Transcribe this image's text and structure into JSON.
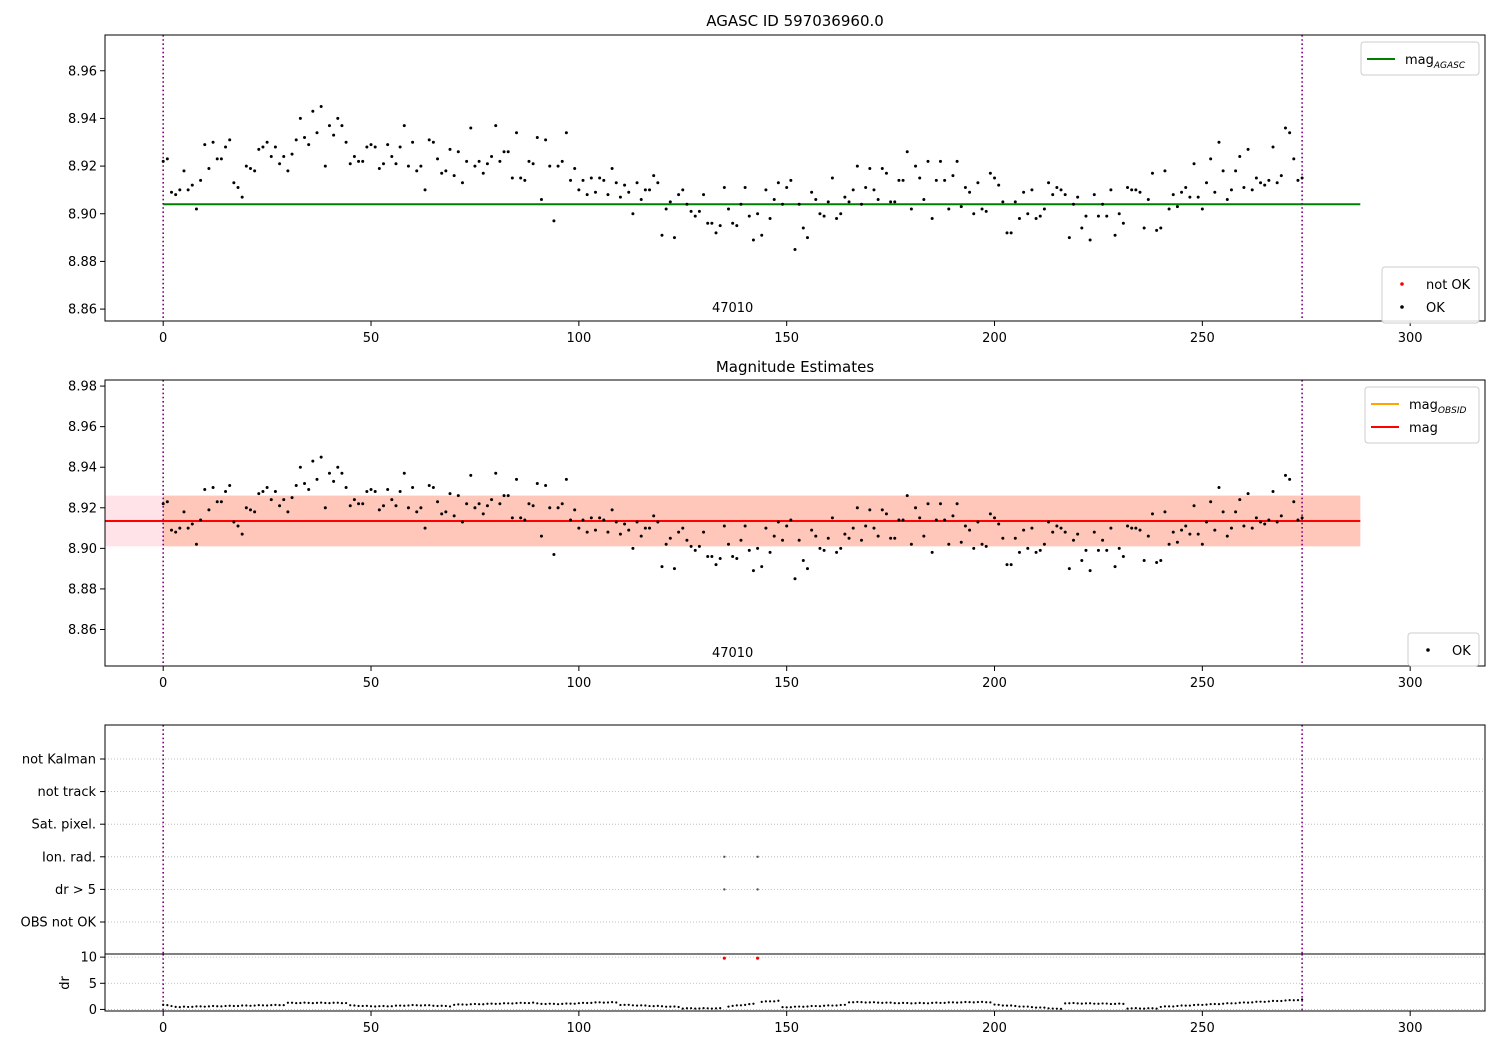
{
  "figure": {
    "obsid_label": "47010"
  },
  "chart_data": [
    {
      "type": "scatter",
      "title": "AGASC ID 597036960.0",
      "xlim": [
        -14,
        318
      ],
      "ylim": [
        8.855,
        8.975
      ],
      "x_ticks": [
        0,
        50,
        100,
        150,
        200,
        250,
        300
      ],
      "y_ticks": [
        8.86,
        8.88,
        8.9,
        8.92,
        8.94,
        8.96
      ],
      "vlines": [
        0,
        274
      ],
      "hlines": [
        {
          "name": "mag_AGASC",
          "y": 8.904,
          "x_range": [
            0,
            288
          ],
          "color": "#008000"
        }
      ],
      "annotation": "47010",
      "legends": [
        {
          "position": "upper-right",
          "entries": [
            {
              "label": "mag",
              "sub": "AGASC",
              "kind": "line",
              "color": "#008000"
            }
          ]
        },
        {
          "position": "lower-right",
          "entries": [
            {
              "label": "not OK",
              "kind": "dot",
              "color": "#ff0000"
            },
            {
              "label": "OK",
              "kind": "dot",
              "color": "#000000"
            }
          ]
        }
      ],
      "series": [
        {
          "name": "OK",
          "color": "#000000",
          "x": [],
          "y": []
        }
      ]
    },
    {
      "type": "scatter",
      "title": "Magnitude Estimates",
      "xlim": [
        -14,
        318
      ],
      "ylim": [
        8.842,
        8.983
      ],
      "x_ticks": [
        0,
        50,
        100,
        150,
        200,
        250,
        300
      ],
      "y_ticks": [
        8.86,
        8.88,
        8.9,
        8.92,
        8.94,
        8.96,
        8.98
      ],
      "vlines": [
        0,
        274
      ],
      "bands": [
        {
          "y": [
            8.901,
            8.926
          ],
          "x_range": [
            -14,
            288
          ],
          "color": "#ffc0cb"
        },
        {
          "y": [
            8.901,
            8.926
          ],
          "x_range": [
            0,
            288
          ],
          "color": "#ffa07a"
        }
      ],
      "hlines": [
        {
          "name": "mag_OBSID",
          "y": 8.9135,
          "x_range": [
            0,
            274
          ],
          "color": "#ffa500"
        },
        {
          "name": "mag",
          "y": 8.9135,
          "x_range": [
            -14,
            288
          ],
          "color": "#ff0000"
        }
      ],
      "annotation": "47010",
      "legends": [
        {
          "position": "upper-right",
          "entries": [
            {
              "label": "mag",
              "sub": "OBSID",
              "kind": "line",
              "color": "#ffa500"
            },
            {
              "label": "mag",
              "kind": "line",
              "color": "#ff0000"
            }
          ]
        },
        {
          "position": "lower-right",
          "entries": [
            {
              "label": "OK",
              "kind": "dot",
              "color": "#000000"
            }
          ]
        }
      ],
      "series": [
        {
          "name": "OK",
          "color": "#000000",
          "x": [],
          "y": []
        }
      ]
    },
    {
      "type": "scatter",
      "xlim": [
        -14,
        318
      ],
      "categories": [
        "not Kalman",
        "not track",
        "Sat. pixel.",
        "Ion. rad.",
        "dr > 5",
        "OBS not OK"
      ],
      "flags": [
        {
          "category": "Ion. rad.",
          "x": [
            135,
            143
          ]
        },
        {
          "category": "dr > 5",
          "x": [
            135,
            143
          ]
        }
      ],
      "vlines": [
        0,
        274
      ]
    },
    {
      "type": "scatter",
      "xlim": [
        -14,
        318
      ],
      "ylim": [
        -0.3,
        10.6
      ],
      "ylabel": "dr",
      "x_ticks": [
        0,
        50,
        100,
        150,
        200,
        250,
        300
      ],
      "y_ticks": [
        0,
        5,
        10
      ],
      "vlines": [
        0,
        274
      ],
      "series": [
        {
          "name": "dr",
          "color": "#000000",
          "x": [],
          "y": []
        },
        {
          "name": "dr not OK",
          "color": "#ff0000",
          "x": [
            135,
            143
          ],
          "y": [
            9.8,
            9.8
          ]
        }
      ]
    }
  ]
}
